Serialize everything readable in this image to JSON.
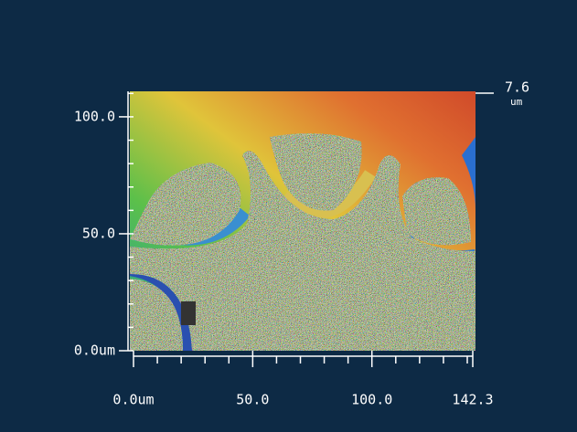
{
  "chart_data": {
    "type": "heightmap",
    "xlim": [
      0,
      142.3
    ],
    "ylim": [
      0,
      110.9
    ],
    "xticks": [
      {
        "value": 0,
        "label": "0.0um"
      },
      {
        "value": 50,
        "label": "50.0"
      },
      {
        "value": 100,
        "label": "100.0"
      },
      {
        "value": 142.3,
        "label": "142.3"
      }
    ],
    "yticks": [
      {
        "value": 0,
        "label": "0.0um"
      },
      {
        "value": 50,
        "label": "50.0"
      },
      {
        "value": 100,
        "label": "100.0"
      }
    ],
    "xminorticks": [
      10,
      20,
      30,
      40,
      60,
      70,
      80,
      90,
      110,
      120,
      130,
      140
    ],
    "yminorticks": [
      10,
      20,
      30,
      40,
      60,
      70,
      80,
      90,
      110
    ],
    "colorbar": {
      "max": {
        "value": 7.6,
        "label": "7.6"
      },
      "unit": "um"
    }
  }
}
